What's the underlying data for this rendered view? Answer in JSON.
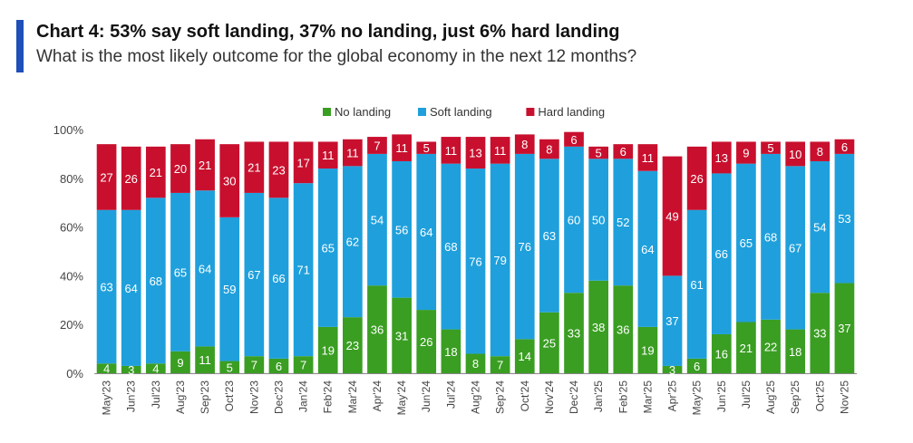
{
  "header": {
    "title": "Chart 4: 53% say soft landing, 37% no landing, just 6% hard landing",
    "subtitle": "What is the most likely outcome for the global economy in the next 12 months?"
  },
  "colors": {
    "no_landing": "#3a9e22",
    "soft_landing": "#1fa0dc",
    "hard_landing": "#c8102e",
    "accent": "#1f4fb8"
  },
  "chart_data": {
    "type": "bar",
    "stacked": true,
    "title": "Chart 4: 53% say soft landing, 37% no landing, just 6% hard landing",
    "subtitle": "What is the most likely outcome for the global economy in the next 12 months?",
    "xlabel": "",
    "ylabel": "",
    "ylim": [
      0,
      100
    ],
    "yticks": [
      "0%",
      "20%",
      "40%",
      "60%",
      "80%",
      "100%"
    ],
    "legend_position": "top",
    "grid": false,
    "categories": [
      "May'23",
      "Jun'23",
      "Jul'23",
      "Aug'23",
      "Sep'23",
      "Oct'23",
      "Nov'23",
      "Dec'23",
      "Jan'24",
      "Feb'24",
      "Mar'24",
      "Apr'24",
      "May'24",
      "Jun'24",
      "Jul'24",
      "Aug'24",
      "Sep'24",
      "Oct'24",
      "Nov'24",
      "Dec'24",
      "Jan'25",
      "Feb'25",
      "Mar'25",
      "Apr'25",
      "May'25",
      "Jun'25",
      "Jul'25",
      "Aug'25",
      "Sep'25",
      "Oct'25",
      "Nov'25"
    ],
    "series": [
      {
        "name": "No landing",
        "color": "#3a9e22",
        "values": [
          4,
          3,
          4,
          9,
          11,
          5,
          7,
          6,
          7,
          19,
          23,
          36,
          31,
          26,
          18,
          8,
          7,
          14,
          25,
          33,
          38,
          36,
          19,
          3,
          6,
          16,
          21,
          22,
          18,
          33,
          37
        ]
      },
      {
        "name": "Soft landing",
        "color": "#1fa0dc",
        "values": [
          63,
          64,
          68,
          65,
          64,
          59,
          67,
          66,
          71,
          65,
          62,
          54,
          56,
          64,
          68,
          76,
          79,
          76,
          63,
          60,
          50,
          52,
          64,
          37,
          61,
          66,
          65,
          68,
          67,
          54,
          53
        ]
      },
      {
        "name": "Hard landing",
        "color": "#c8102e",
        "values": [
          27,
          26,
          21,
          20,
          21,
          30,
          21,
          23,
          17,
          11,
          11,
          7,
          11,
          5,
          11,
          13,
          11,
          8,
          8,
          6,
          5,
          6,
          11,
          49,
          26,
          13,
          9,
          5,
          10,
          8,
          6
        ]
      }
    ]
  }
}
